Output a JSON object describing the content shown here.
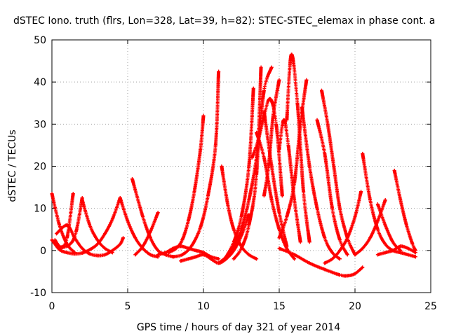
{
  "chart_data": {
    "type": "scatter",
    "title": "dSTEC Iono. truth (flrs, Lon=328, Lat=39, h=82): STEC-STEC_elemax in phase cont. a",
    "xlabel": "GPS time / hours of day 321 of year 2014",
    "ylabel": "dSTEC  / TECUs",
    "xlim": [
      0,
      25
    ],
    "ylim": [
      -10,
      50
    ],
    "xticks": [
      0,
      5,
      10,
      15,
      20,
      25
    ],
    "yticks": [
      -10,
      0,
      10,
      20,
      30,
      40,
      50
    ],
    "grid": true,
    "marker": "+",
    "colors": {
      "series": "#ff0000",
      "grid": "#a0a0a0",
      "axis": "#000000"
    },
    "series": [
      {
        "x": [
          0.0,
          0.5,
          1.0,
          1.5
        ],
        "y": [
          13.5,
          6.0,
          1.5,
          -0.5
        ]
      },
      {
        "x": [
          0.0,
          0.5,
          1.0,
          1.5,
          2.0,
          2.5,
          3.0,
          3.5,
          4.0,
          4.5
        ],
        "y": [
          2.5,
          0.2,
          -0.5,
          -0.8,
          -0.6,
          0.2,
          1.5,
          4.0,
          7.5,
          12.5
        ]
      },
      {
        "x": [
          0.2,
          0.6,
          1.0,
          1.4
        ],
        "y": [
          2.5,
          0.8,
          3.0,
          13.5
        ]
      },
      {
        "x": [
          0.3,
          1.0,
          1.5,
          2.0,
          2.5,
          3.0,
          3.5,
          4.0,
          4.5,
          4.7
        ],
        "y": [
          4.0,
          6.0,
          3.0,
          0.5,
          -0.8,
          -1.2,
          -1.0,
          0.0,
          1.5,
          3.0
        ]
      },
      {
        "x": [
          0.5,
          1.2,
          1.6,
          2.0
        ],
        "y": [
          0.5,
          1.5,
          4.5,
          12.5
        ]
      },
      {
        "x": [
          2.0,
          2.5,
          3.0,
          3.5,
          4.0
        ],
        "y": [
          12.0,
          6.0,
          2.5,
          0.5,
          -0.5
        ]
      },
      {
        "x": [
          4.5,
          5.0,
          5.5,
          6.0,
          6.5,
          7.0
        ],
        "y": [
          12.5,
          7.0,
          3.0,
          0.5,
          -1.0,
          -1.5
        ]
      },
      {
        "x": [
          5.3,
          6.0,
          6.5,
          7.0,
          7.5,
          8.0
        ],
        "y": [
          17.0,
          8.0,
          3.0,
          0.0,
          -1.0,
          -1.5
        ]
      },
      {
        "x": [
          5.5,
          6.0,
          6.5,
          7.0
        ],
        "y": [
          -1.0,
          1.0,
          4.5,
          9.0
        ]
      },
      {
        "x": [
          7.0,
          7.5,
          8.0,
          8.5,
          9.0,
          9.5,
          10.0,
          10.5,
          11.0
        ],
        "y": [
          -1.0,
          -0.5,
          0.5,
          1.0,
          0.5,
          0.0,
          -0.5,
          -1.5,
          -2.0
        ]
      },
      {
        "x": [
          8.5,
          9.0,
          9.5,
          10.0,
          10.5
        ],
        "y": [
          -2.5,
          -2.0,
          -1.5,
          -1.0,
          -2.0
        ]
      },
      {
        "x": [
          7.7,
          8.2,
          8.6,
          9.0,
          9.4,
          9.8,
          10.0
        ],
        "y": [
          -0.5,
          0.5,
          2.5,
          7.0,
          14.0,
          24.0,
          32.0
        ]
      },
      {
        "x": [
          8.0,
          8.6,
          9.2,
          9.8,
          10.3,
          10.8,
          11.0
        ],
        "y": [
          -1.5,
          -1.0,
          1.0,
          5.5,
          13.0,
          25.0,
          42.5
        ]
      },
      {
        "x": [
          10.5,
          11.0,
          11.5,
          12.0,
          12.5,
          13.0
        ],
        "y": [
          -2.0,
          -3.0,
          -2.0,
          0.0,
          3.5,
          8.5
        ]
      },
      {
        "x": [
          11.2,
          11.6,
          12.0,
          12.5,
          13.0,
          13.5
        ],
        "y": [
          20.0,
          11.0,
          5.0,
          1.0,
          -1.0,
          -2.0
        ]
      },
      {
        "x": [
          11.0,
          11.5,
          12.0,
          12.5,
          13.0,
          13.5,
          14.0,
          14.5
        ],
        "y": [
          -3.0,
          -1.5,
          1.0,
          5.0,
          12.0,
          22.0,
          38.0,
          43.5
        ]
      },
      {
        "x": [
          11.5,
          12.0,
          12.5,
          13.0,
          13.3
        ],
        "y": [
          -1.5,
          2.0,
          8.0,
          20.0,
          38.5
        ]
      },
      {
        "x": [
          12.0,
          12.5,
          13.0,
          13.5,
          13.8
        ],
        "y": [
          -2.0,
          0.5,
          6.0,
          18.0,
          43.5
        ]
      },
      {
        "x": [
          13.2,
          13.6,
          14.0,
          14.4,
          14.8,
          15.2
        ],
        "y": [
          22.0,
          26.0,
          32.0,
          36.0,
          30.0,
          13.0
        ]
      },
      {
        "x": [
          13.5,
          14.0,
          14.5,
          15.0,
          15.5,
          16.0
        ],
        "y": [
          28.0,
          22.0,
          12.0,
          5.0,
          0.5,
          -2.0
        ]
      },
      {
        "x": [
          14.0,
          14.5,
          15.0,
          15.5
        ],
        "y": [
          33.0,
          20.0,
          9.0,
          1.0
        ]
      },
      {
        "x": [
          14.0,
          14.3,
          14.6,
          15.0
        ],
        "y": [
          13.0,
          20.0,
          32.0,
          40.5
        ]
      },
      {
        "x": [
          15.0,
          15.3,
          15.6,
          16.0,
          16.4
        ],
        "y": [
          24.0,
          31.0,
          25.0,
          12.0,
          2.0
        ]
      },
      {
        "x": [
          15.5,
          15.8,
          16.2,
          16.6,
          17.0
        ],
        "y": [
          31.0,
          46.5,
          35.0,
          14.0,
          2.0
        ]
      },
      {
        "x": [
          15.0,
          15.5,
          16.0,
          16.4,
          16.8
        ],
        "y": [
          3.0,
          8.0,
          16.0,
          30.0,
          40.5
        ]
      },
      {
        "x": [
          16.5,
          17.0,
          17.5,
          18.0,
          18.5,
          19.0
        ],
        "y": [
          34.0,
          20.0,
          10.0,
          3.0,
          -0.5,
          -2.0
        ]
      },
      {
        "x": [
          17.5,
          18.0,
          18.5,
          19.0,
          19.5
        ],
        "y": [
          31.0,
          23.0,
          10.0,
          2.5,
          -1.0
        ]
      },
      {
        "x": [
          17.8,
          18.2,
          18.6,
          19.0,
          19.5,
          20.0
        ],
        "y": [
          38.0,
          30.0,
          20.0,
          10.0,
          3.0,
          -1.0
        ]
      },
      {
        "x": [
          18.0,
          18.5,
          19.0,
          19.5,
          20.0,
          20.4
        ],
        "y": [
          -3.0,
          -2.0,
          0.0,
          3.0,
          8.0,
          14.0
        ]
      },
      {
        "x": [
          15.0,
          16.0,
          17.0,
          18.0,
          19.0,
          19.5,
          20.0,
          20.5
        ],
        "y": [
          0.5,
          -1.0,
          -3.0,
          -4.5,
          -5.8,
          -6.0,
          -5.5,
          -4.0
        ]
      },
      {
        "x": [
          20.5,
          21.0,
          21.5,
          22.0,
          22.5,
          23.0,
          23.5,
          24.0
        ],
        "y": [
          23.0,
          12.0,
          5.0,
          1.5,
          0.0,
          -0.5,
          -1.0,
          -1.5
        ]
      },
      {
        "x": [
          20.0,
          20.5,
          21.0,
          21.5,
          22.0
        ],
        "y": [
          -1.0,
          0.5,
          3.0,
          7.0,
          12.0
        ]
      },
      {
        "x": [
          21.5,
          22.0,
          22.5,
          23.0
        ],
        "y": [
          11.0,
          6.0,
          2.0,
          0.0
        ]
      },
      {
        "x": [
          22.6,
          23.0,
          23.4,
          23.8,
          24.0
        ],
        "y": [
          19.0,
          12.0,
          6.0,
          1.5,
          0.0
        ]
      },
      {
        "x": [
          21.5,
          22.0,
          22.5,
          23.0,
          23.5,
          24.0
        ],
        "y": [
          -1.0,
          -0.5,
          0.0,
          1.0,
          0.5,
          -0.5
        ]
      }
    ]
  }
}
